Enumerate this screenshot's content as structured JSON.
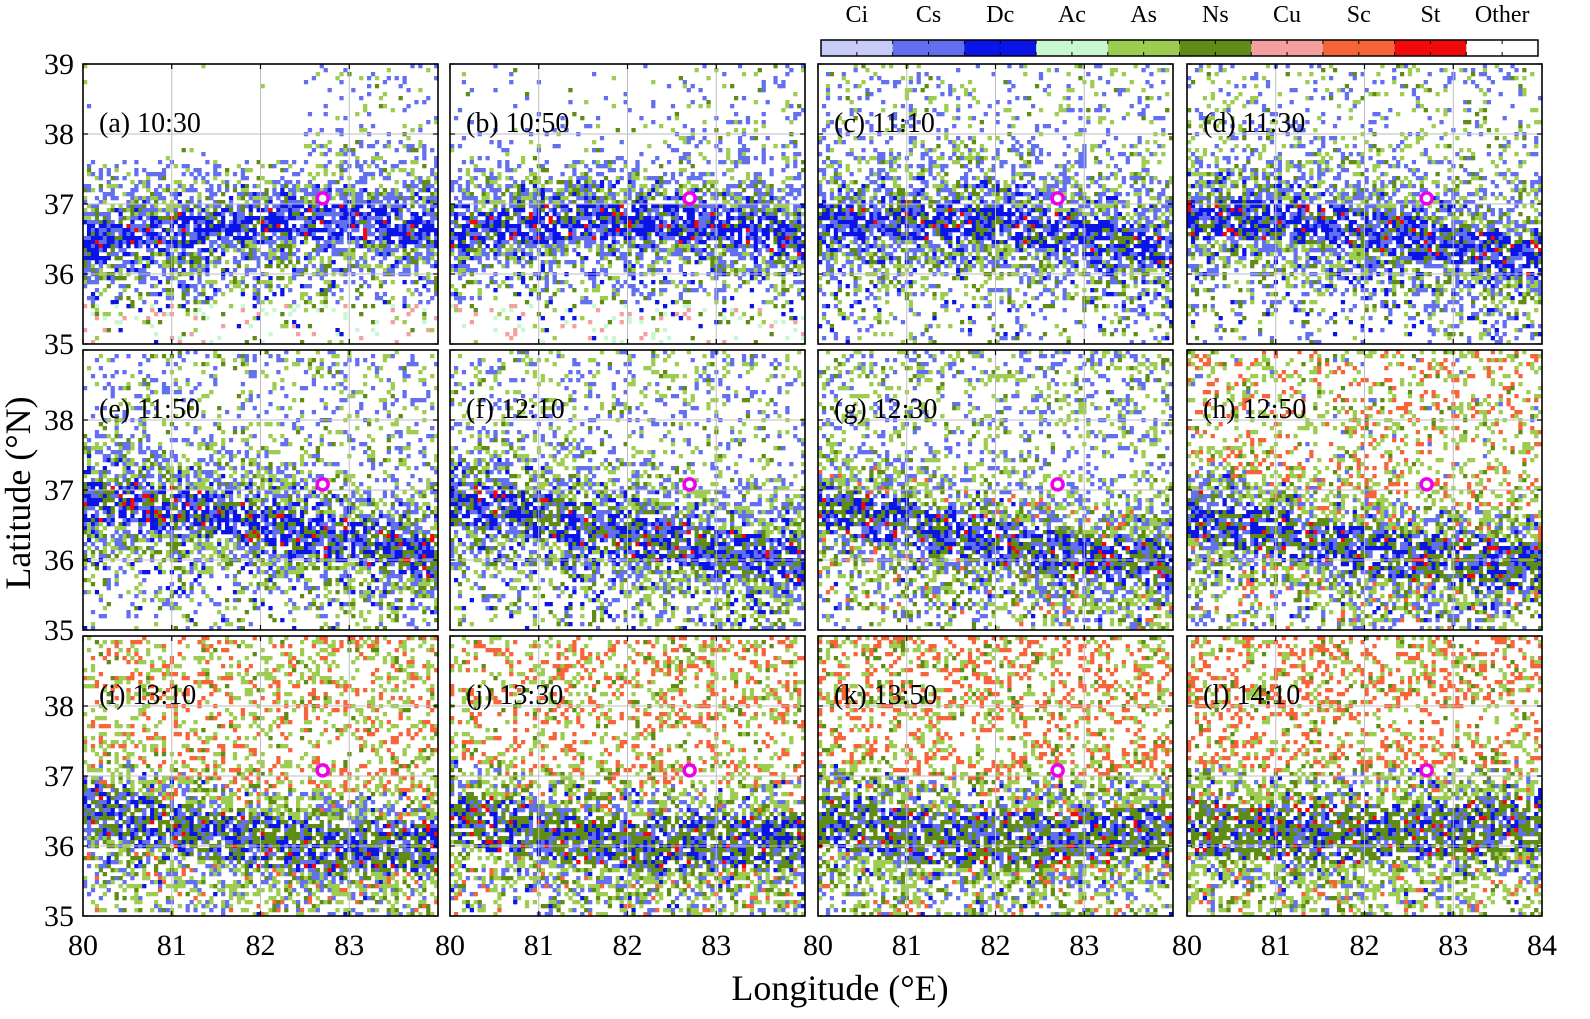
{
  "chart_data": {
    "type": "heatmap",
    "layout": "3x4 small multiples",
    "xlabel": "Longitude (°E)",
    "ylabel": "Latitude (°N)",
    "xlim": [
      80,
      84
    ],
    "ylim": [
      35,
      39
    ],
    "xticks": [
      "80",
      "81",
      "82",
      "83",
      "84"
    ],
    "yticks": [
      "35",
      "36",
      "37",
      "38",
      "39"
    ],
    "grid": true,
    "legend": {
      "placement": "top-right colorbar",
      "categories": [
        {
          "name": "Ci",
          "color": "#c8ccf8"
        },
        {
          "name": "Cs",
          "color": "#6270f0"
        },
        {
          "name": "Dc",
          "color": "#0a14e6"
        },
        {
          "name": "Ac",
          "color": "#c8f8d2"
        },
        {
          "name": "As",
          "color": "#9ccc50"
        },
        {
          "name": "Ns",
          "color": "#5e8c14"
        },
        {
          "name": "Cu",
          "color": "#f4a0a0"
        },
        {
          "name": "Sc",
          "color": "#f8643a"
        },
        {
          "name": "St",
          "color": "#f00a0a"
        },
        {
          "name": "Other",
          "color": "#ffffff"
        }
      ]
    },
    "marker": {
      "lon": 82.7,
      "lat": 37.08,
      "color": "#ee00ee",
      "shape": "open circle"
    },
    "panels": [
      {
        "label": "(a) 10:30",
        "dominant": [
          "Cs",
          "Dc",
          "As",
          "Ac",
          "Cu"
        ]
      },
      {
        "label": "(b) 10:50",
        "dominant": [
          "Cs",
          "Dc",
          "As",
          "Cu"
        ]
      },
      {
        "label": "(c) 11:10",
        "dominant": [
          "Cs",
          "Dc",
          "As",
          "Ns"
        ]
      },
      {
        "label": "(d) 11:30",
        "dominant": [
          "Cs",
          "Dc",
          "As",
          "Ns",
          "Sc"
        ]
      },
      {
        "label": "(e) 11:50",
        "dominant": [
          "Cs",
          "Dc",
          "As",
          "Ns"
        ]
      },
      {
        "label": "(f) 12:10",
        "dominant": [
          "Cs",
          "Dc",
          "As",
          "Ns",
          "Sc"
        ]
      },
      {
        "label": "(g) 12:30",
        "dominant": [
          "Cs",
          "Dc",
          "As",
          "Ns",
          "Sc"
        ]
      },
      {
        "label": "(h) 12:50",
        "dominant": [
          "Cs",
          "Dc",
          "As",
          "Ns",
          "Sc"
        ]
      },
      {
        "label": "(i) 13:10",
        "dominant": [
          "Cs",
          "Dc",
          "As",
          "Ns",
          "Sc",
          "St"
        ]
      },
      {
        "label": "(j) 13:30",
        "dominant": [
          "Cs",
          "Dc",
          "As",
          "Ns",
          "Sc",
          "St"
        ]
      },
      {
        "label": "(k) 13:50",
        "dominant": [
          "Cs",
          "Dc",
          "As",
          "Ns",
          "Sc",
          "St",
          "Cu"
        ]
      },
      {
        "label": "(l) 14:10",
        "dominant": [
          "Cs",
          "Dc",
          "As",
          "Ns",
          "Sc",
          "St",
          "Cu"
        ]
      }
    ]
  }
}
